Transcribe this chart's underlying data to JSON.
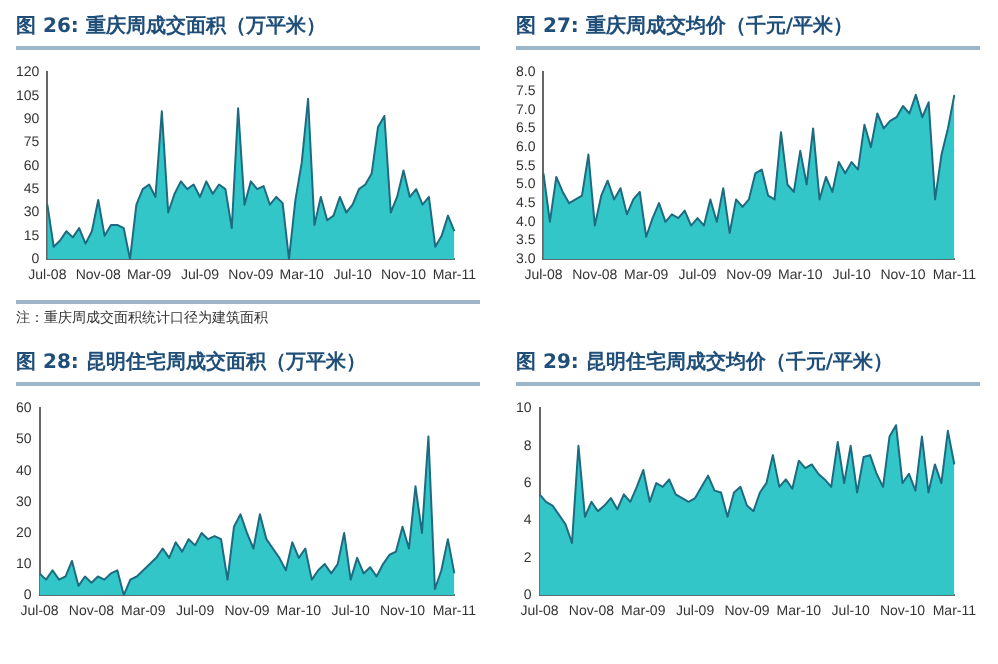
{
  "chart_data": [
    {
      "type": "area",
      "title": "图 26: 重庆周成交面积（万平米）",
      "annotations": [
        "注：重庆周成交面积统计口径为建筑面积"
      ],
      "categories": [
        "Jul-08",
        null,
        null,
        null,
        null,
        null,
        null,
        null,
        "Nov-08",
        null,
        null,
        null,
        null,
        null,
        null,
        null,
        "Mar-09",
        null,
        null,
        null,
        null,
        null,
        null,
        null,
        "Jul-09",
        null,
        null,
        null,
        null,
        null,
        null,
        null,
        "Nov-09",
        null,
        null,
        null,
        null,
        null,
        null,
        null,
        "Mar-10",
        null,
        null,
        null,
        null,
        null,
        null,
        null,
        "Jul-10",
        null,
        null,
        null,
        null,
        null,
        null,
        null,
        "Nov-10",
        null,
        null,
        null,
        null,
        null,
        null,
        null,
        "Mar-11"
      ],
      "series": [
        {
          "color": "#33c6c8",
          "values": [
            35,
            8,
            12,
            18,
            14,
            20,
            10,
            18,
            38,
            15,
            22,
            22,
            20,
            0,
            35,
            45,
            48,
            40,
            95,
            30,
            42,
            50,
            45,
            48,
            40,
            50,
            42,
            48,
            45,
            20,
            97,
            35,
            50,
            45,
            47,
            35,
            40,
            36,
            0,
            38,
            62,
            103,
            22,
            40,
            25,
            28,
            40,
            30,
            35,
            45,
            48,
            55,
            85,
            92,
            30,
            40,
            57,
            40,
            45,
            35,
            40,
            8,
            15,
            28,
            18
          ]
        }
      ],
      "ylim": [
        0,
        120
      ],
      "yticks": [
        0,
        15,
        30,
        45,
        60,
        75,
        90,
        105,
        120
      ],
      "grid": false,
      "legend": false
    },
    {
      "type": "area",
      "title": "图 27: 重庆周成交均价（千元/平米）",
      "categories": [
        "Jul-08",
        null,
        null,
        null,
        null,
        null,
        null,
        null,
        "Nov-08",
        null,
        null,
        null,
        null,
        null,
        null,
        null,
        "Mar-09",
        null,
        null,
        null,
        null,
        null,
        null,
        null,
        "Jul-09",
        null,
        null,
        null,
        null,
        null,
        null,
        null,
        "Nov-09",
        null,
        null,
        null,
        null,
        null,
        null,
        null,
        "Mar-10",
        null,
        null,
        null,
        null,
        null,
        null,
        null,
        "Jul-10",
        null,
        null,
        null,
        null,
        null,
        null,
        null,
        "Nov-10",
        null,
        null,
        null,
        null,
        null,
        null,
        null,
        "Mar-11"
      ],
      "series": [
        {
          "color": "#33c6c8",
          "values": [
            5.3,
            4.0,
            5.2,
            4.8,
            4.5,
            4.6,
            4.7,
            5.8,
            3.9,
            4.7,
            5.1,
            4.6,
            4.9,
            4.2,
            4.6,
            4.8,
            3.6,
            4.1,
            4.5,
            4.0,
            4.2,
            4.1,
            4.3,
            3.9,
            4.1,
            3.9,
            4.6,
            4.0,
            4.9,
            3.7,
            4.6,
            4.4,
            4.6,
            5.3,
            5.4,
            4.7,
            4.6,
            6.4,
            5.0,
            4.8,
            5.9,
            5.0,
            6.5,
            4.6,
            5.2,
            4.8,
            5.6,
            5.3,
            5.6,
            5.4,
            6.6,
            6.0,
            6.9,
            6.5,
            6.7,
            6.8,
            7.1,
            6.9,
            7.4,
            6.8,
            7.2,
            4.6,
            5.8,
            6.5,
            7.4
          ]
        }
      ],
      "ylim": [
        3,
        8
      ],
      "yticks": [
        {
          "value": 3,
          "label": "3.0"
        },
        {
          "value": 3.5,
          "label": "3.5"
        },
        {
          "value": 4,
          "label": "4.0"
        },
        {
          "value": 4.5,
          "label": "4.5"
        },
        {
          "value": 5,
          "label": "5.0"
        },
        {
          "value": 5.5,
          "label": "5.5"
        },
        {
          "value": 6,
          "label": "6.0"
        },
        {
          "value": 6.5,
          "label": "6.5"
        },
        {
          "value": 7,
          "label": "7.0"
        },
        {
          "value": 7.5,
          "label": "7.5"
        },
        {
          "value": 8,
          "label": "8.0"
        }
      ],
      "grid": false,
      "legend": false
    },
    {
      "type": "area",
      "title": "图 28: 昆明住宅周成交面积（万平米）",
      "categories": [
        "Jul-08",
        null,
        null,
        null,
        null,
        null,
        null,
        null,
        "Nov-08",
        null,
        null,
        null,
        null,
        null,
        null,
        null,
        "Mar-09",
        null,
        null,
        null,
        null,
        null,
        null,
        null,
        "Jul-09",
        null,
        null,
        null,
        null,
        null,
        null,
        null,
        "Nov-09",
        null,
        null,
        null,
        null,
        null,
        null,
        null,
        "Mar-10",
        null,
        null,
        null,
        null,
        null,
        null,
        null,
        "Jul-10",
        null,
        null,
        null,
        null,
        null,
        null,
        null,
        "Nov-10",
        null,
        null,
        null,
        null,
        null,
        null,
        null,
        "Mar-11"
      ],
      "series": [
        {
          "color": "#33c6c8",
          "values": [
            7,
            5,
            8,
            5,
            6,
            11,
            3,
            6,
            4,
            6,
            5,
            7,
            8,
            0,
            5,
            6,
            8,
            10,
            12,
            15,
            12,
            17,
            14,
            18,
            16,
            20,
            18,
            19,
            18,
            5,
            22,
            26,
            20,
            15,
            26,
            18,
            15,
            12,
            8,
            17,
            12,
            15,
            5,
            8,
            10,
            7,
            10,
            20,
            5,
            12,
            7,
            9,
            6,
            10,
            13,
            14,
            22,
            15,
            35,
            20,
            51,
            2,
            8,
            18,
            7
          ]
        }
      ],
      "ylim": [
        0,
        60
      ],
      "yticks": [
        0,
        10,
        20,
        30,
        40,
        50,
        60
      ],
      "grid": false,
      "legend": false
    },
    {
      "type": "area",
      "title": "图 29: 昆明住宅周成交均价（千元/平米）",
      "categories": [
        "Jul-08",
        null,
        null,
        null,
        null,
        null,
        null,
        null,
        "Nov-08",
        null,
        null,
        null,
        null,
        null,
        null,
        null,
        "Mar-09",
        null,
        null,
        null,
        null,
        null,
        null,
        null,
        "Jul-09",
        null,
        null,
        null,
        null,
        null,
        null,
        null,
        "Nov-09",
        null,
        null,
        null,
        null,
        null,
        null,
        null,
        "Mar-10",
        null,
        null,
        null,
        null,
        null,
        null,
        null,
        "Jul-10",
        null,
        null,
        null,
        null,
        null,
        null,
        null,
        "Nov-10",
        null,
        null,
        null,
        null,
        null,
        null,
        null,
        "Mar-11"
      ],
      "series": [
        {
          "color": "#33c6c8",
          "values": [
            5.4,
            5.0,
            4.8,
            4.3,
            3.8,
            2.8,
            8.0,
            4.2,
            5.0,
            4.5,
            4.8,
            5.2,
            4.6,
            5.4,
            5.0,
            5.8,
            6.7,
            5.0,
            6.0,
            5.8,
            6.2,
            5.4,
            5.2,
            5.0,
            5.2,
            5.8,
            6.4,
            5.6,
            5.5,
            4.2,
            5.5,
            5.8,
            4.8,
            4.5,
            5.5,
            6.0,
            7.5,
            5.8,
            6.2,
            5.7,
            7.2,
            6.8,
            7.0,
            6.5,
            6.2,
            5.8,
            8.2,
            6.0,
            8.0,
            5.5,
            7.4,
            7.5,
            6.5,
            5.8,
            8.5,
            9.1,
            6.0,
            6.5,
            5.6,
            8.5,
            5.5,
            7.0,
            6.0,
            8.8,
            7.0
          ]
        }
      ],
      "ylim": [
        0,
        10
      ],
      "yticks": [
        0,
        2,
        4,
        6,
        8,
        10
      ],
      "grid": false,
      "legend": false
    }
  ]
}
